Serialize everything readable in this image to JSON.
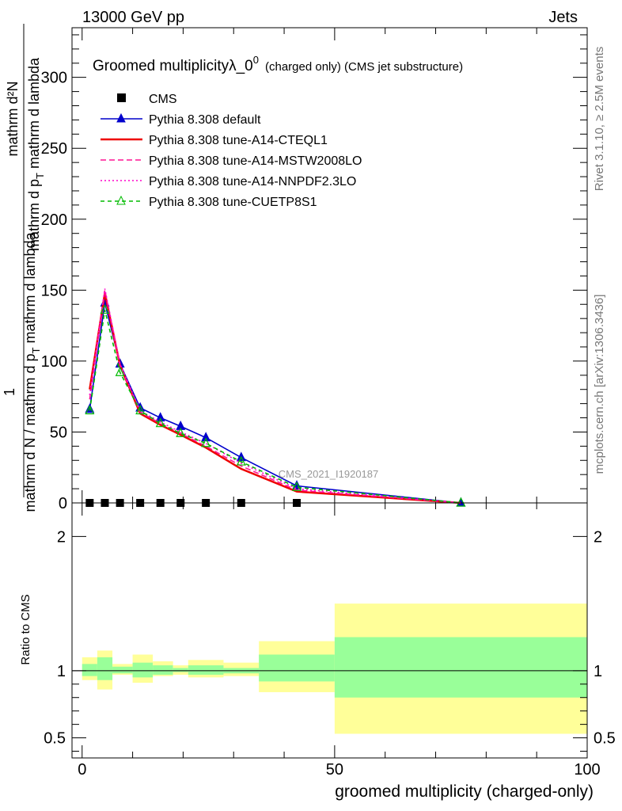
{
  "header": {
    "left": "13000 GeV pp",
    "right": "Jets"
  },
  "side_labels": {
    "rivet": "Rivet 3.1.10, ≥ 2.5M events",
    "mcplots": "mcplots.cern.ch [arXiv:1306.3436]"
  },
  "main_title": {
    "main": "Groomed multiplicityλ_0",
    "sup": "0",
    "sub": "(charged only) (CMS jet substructure)"
  },
  "analysis_label": "CMS_2021_I1920187",
  "y_label": {
    "numer": "mathrm d²N",
    "one": "1",
    "denom": "mathrm d N / mathrm d p",
    "denom_sub": "T",
    "denom_rest": " mathrm d lambda",
    "upper": "mathrm d p",
    "upper_sub": "T",
    "upper_rest": " mathrm d lambda"
  },
  "ratio_label": "Ratio to CMS",
  "x_label": "groomed multiplicity (charged-only)",
  "chart_data": [
    {
      "type": "line",
      "panel": "main",
      "xlim": [
        -2,
        100
      ],
      "ylim": [
        0,
        335
      ],
      "x_ticks": [
        0,
        50,
        100
      ],
      "y_ticks": [
        0,
        50,
        100,
        150,
        200,
        250,
        300
      ],
      "legend_position": "top-left",
      "series": [
        {
          "name": "CMS",
          "color": "#000000",
          "style": "marker-square",
          "x": [
            1.5,
            4.5,
            7.5,
            11.5,
            15.5,
            19.5,
            24.5,
            31.5,
            42.5
          ],
          "values": [
            0,
            0,
            0,
            0,
            0,
            0,
            0,
            0,
            0
          ]
        },
        {
          "name": "Pythia 8.308 default",
          "color": "#0000cc",
          "style": "solid-triangle",
          "x": [
            1.5,
            4.5,
            7.5,
            11.5,
            15.5,
            19.5,
            24.5,
            31.5,
            42.5,
            75
          ],
          "values": [
            66,
            141,
            98,
            67,
            60,
            54,
            46,
            32,
            12,
            0
          ]
        },
        {
          "name": "Pythia 8.308 tune-A14-CTEQL1",
          "color": "#ee0000",
          "style": "solid-thick",
          "x": [
            1.5,
            4.5,
            7.5,
            11.5,
            15.5,
            19.5,
            24.5,
            31.5,
            42.5,
            75
          ],
          "values": [
            80,
            148,
            97,
            63,
            55,
            48,
            39,
            24,
            8,
            0
          ]
        },
        {
          "name": "Pythia 8.308 tune-A14-MSTW2008LO",
          "color": "#ff1493",
          "style": "dashed",
          "x": [
            1.5,
            4.5,
            7.5,
            11.5,
            15.5,
            19.5,
            24.5,
            31.5,
            42.5,
            75
          ],
          "values": [
            73,
            150,
            97,
            64,
            56,
            49,
            40,
            26,
            9,
            0
          ]
        },
        {
          "name": "Pythia 8.308 tune-A14-NNPDF2.3LO",
          "color": "#ff00cc",
          "style": "dotted",
          "x": [
            1.5,
            4.5,
            7.5,
            11.5,
            15.5,
            19.5,
            24.5,
            31.5,
            42.5,
            75
          ],
          "values": [
            76,
            151,
            98,
            65,
            57,
            50,
            42,
            28,
            10,
            0
          ]
        },
        {
          "name": "Pythia 8.308 tune-CUETP8S1",
          "color": "#00bb00",
          "style": "dashed-open-triangle",
          "x": [
            1.5,
            4.5,
            7.5,
            11.5,
            15.5,
            19.5,
            24.5,
            31.5,
            42.5,
            75
          ],
          "values": [
            65,
            136,
            92,
            65,
            56,
            49,
            42,
            29,
            11,
            0
          ]
        }
      ]
    },
    {
      "type": "area",
      "panel": "ratio",
      "xlim": [
        -2,
        100
      ],
      "ylim": [
        0.35,
        2.25
      ],
      "y_ticks": [
        0.5,
        1,
        2
      ],
      "reference_line": 1,
      "bins": [
        {
          "x0": 0,
          "x1": 3,
          "inner": [
            0.96,
            1.05
          ],
          "outer": [
            0.93,
            1.1
          ]
        },
        {
          "x0": 3,
          "x1": 6,
          "inner": [
            0.93,
            1.1
          ],
          "outer": [
            0.86,
            1.15
          ]
        },
        {
          "x0": 6,
          "x1": 10,
          "inner": [
            0.98,
            1.03
          ],
          "outer": [
            0.97,
            1.05
          ]
        },
        {
          "x0": 10,
          "x1": 14,
          "inner": [
            0.95,
            1.06
          ],
          "outer": [
            0.91,
            1.12
          ]
        },
        {
          "x0": 14,
          "x1": 18,
          "inner": [
            0.97,
            1.04
          ],
          "outer": [
            0.96,
            1.07
          ]
        },
        {
          "x0": 18,
          "x1": 21,
          "inner": [
            0.99,
            1.02
          ],
          "outer": [
            0.97,
            1.04
          ]
        },
        {
          "x0": 21,
          "x1": 28,
          "inner": [
            0.97,
            1.04
          ],
          "outer": [
            0.95,
            1.08
          ]
        },
        {
          "x0": 28,
          "x1": 35,
          "inner": [
            0.98,
            1.02
          ],
          "outer": [
            0.96,
            1.06
          ]
        },
        {
          "x0": 35,
          "x1": 50,
          "inner": [
            0.92,
            1.12
          ],
          "outer": [
            0.84,
            1.22
          ]
        },
        {
          "x0": 50,
          "x1": 100,
          "inner": [
            0.8,
            1.25
          ],
          "outer": [
            0.53,
            1.5
          ]
        }
      ],
      "colors": {
        "inner": "#99ff99",
        "outer": "#ffff99"
      }
    }
  ]
}
